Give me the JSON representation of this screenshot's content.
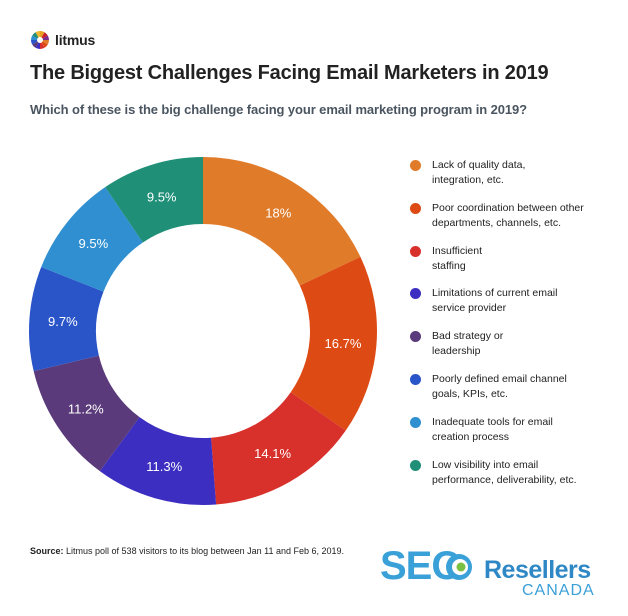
{
  "brand_logo": {
    "name": "litmus",
    "icon": "litmus-logo-icon"
  },
  "chart_data": {
    "type": "pie",
    "title": "The Biggest Challenges Facing Email Marketers in 2019",
    "subtitle": "Which of these is the big challenge facing your email marketing program in 2019?",
    "slices": [
      {
        "label": "Lack of quality data,\nintegration, etc.",
        "value": 18,
        "display": "18%",
        "color": "#e07b2a"
      },
      {
        "label": "Poor coordination between other\ndepartments, channels, etc.",
        "value": 16.7,
        "display": "16.7%",
        "color": "#dd4a14"
      },
      {
        "label": "Insufficient\nstaffing",
        "value": 14.1,
        "display": "14.1%",
        "color": "#d8302b"
      },
      {
        "label": "Limitations of current email\nservice provider",
        "value": 11.3,
        "display": "11.3%",
        "color": "#3b2ec0"
      },
      {
        "label": "Bad strategy or\nleadership",
        "value": 11.2,
        "display": "11.2%",
        "color": "#5a3a7a"
      },
      {
        "label": "Poorly defined email channel\ngoals, KPIs, etc.",
        "value": 9.7,
        "display": "9.7%",
        "color": "#2a55c8"
      },
      {
        "label": "Inadequate tools for email\ncreation process",
        "value": 9.5,
        "display": "9.5%",
        "color": "#2f8fd0"
      },
      {
        "label": "Low visibility into email\nperformance, deliverability, etc.",
        "value": 9.5,
        "display": "9.5%",
        "color": "#1f8f78"
      }
    ],
    "legend_position": "right"
  },
  "source": {
    "prefix": "Source:",
    "text": "Litmus poll of 538 visitors to its blog between Jan 11 and Feb 6, 2019."
  },
  "watermark": {
    "seo": "SEO",
    "resellers": "Resellers",
    "canada": "CANADA"
  }
}
